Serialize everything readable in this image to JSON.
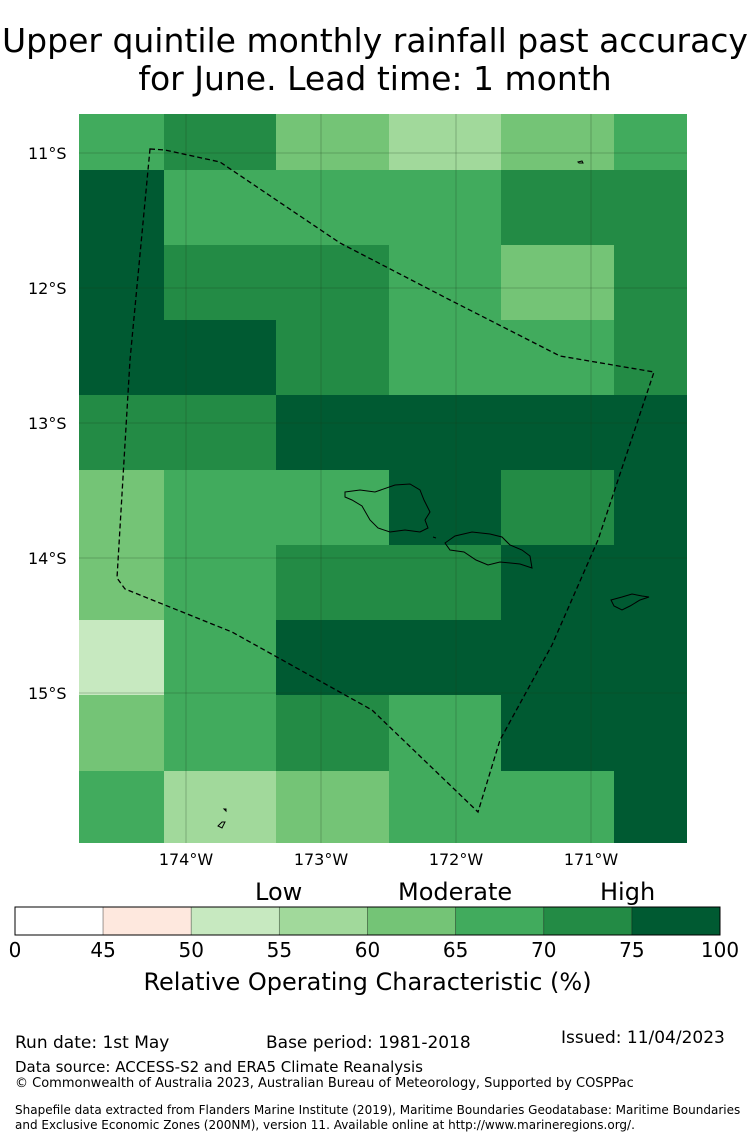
{
  "title_line1": "Upper quintile monthly rainfall past accuracy",
  "title_line2": "for June. Lead time: 1 month",
  "lat_ticks": [
    "11°S",
    "12°S",
    "13°S",
    "14°S",
    "15°S"
  ],
  "lon_ticks": [
    "174°W",
    "173°W",
    "172°W",
    "171°W"
  ],
  "category_labels": {
    "low": "Low",
    "moderate": "Moderate",
    "high": "High"
  },
  "colorbar": {
    "ticks": [
      "0",
      "45",
      "50",
      "55",
      "60",
      "65",
      "70",
      "75",
      "100"
    ],
    "bins": [
      {
        "from": 0,
        "to": 45,
        "color": "#ffffff"
      },
      {
        "from": 45,
        "to": 50,
        "color": "#fee8de"
      },
      {
        "from": 50,
        "to": 55,
        "color": "#c7e9c0"
      },
      {
        "from": 55,
        "to": 60,
        "color": "#a1d99b"
      },
      {
        "from": 60,
        "to": 65,
        "color": "#74c476"
      },
      {
        "from": 65,
        "to": 70,
        "color": "#41ab5d"
      },
      {
        "from": 70,
        "to": 75,
        "color": "#238b45"
      },
      {
        "from": 75,
        "to": 100,
        "color": "#005a32"
      }
    ],
    "title": "Relative Operating Characteristic (%)"
  },
  "grid_values": [
    [
      65,
      70,
      60,
      55,
      60,
      65
    ],
    [
      75,
      65,
      65,
      65,
      70,
      70
    ],
    [
      75,
      70,
      70,
      65,
      60,
      70
    ],
    [
      75,
      75,
      70,
      65,
      65,
      70
    ],
    [
      70,
      70,
      75,
      75,
      75,
      75
    ],
    [
      60,
      65,
      65,
      75,
      70,
      75
    ],
    [
      60,
      65,
      70,
      70,
      75,
      75
    ],
    [
      50,
      65,
      75,
      75,
      75,
      75
    ],
    [
      60,
      65,
      70,
      65,
      75,
      75
    ],
    [
      65,
      55,
      60,
      65,
      65,
      75
    ]
  ],
  "footer": {
    "run_date": "Run date: 1st May",
    "base_period": "Base period: 1981-2018",
    "issued": "Issued: 11/04/2023",
    "data_source": "Data source: ACCESS-S2 and ERA5 Climate Reanalysis",
    "copyright": "© Commonwealth of Australia 2023, Australian Bureau of Meteorology, Supported by COSPPac",
    "shapefile_line1": "Shapefile data extracted from Flanders Marine Institute (2019), Maritime Boundaries Geodatabase: Maritime Boundaries",
    "shapefile_line2": "and Exclusive Economic Zones (200NM), version 11. Available online at http://www.marineregions.org/."
  }
}
